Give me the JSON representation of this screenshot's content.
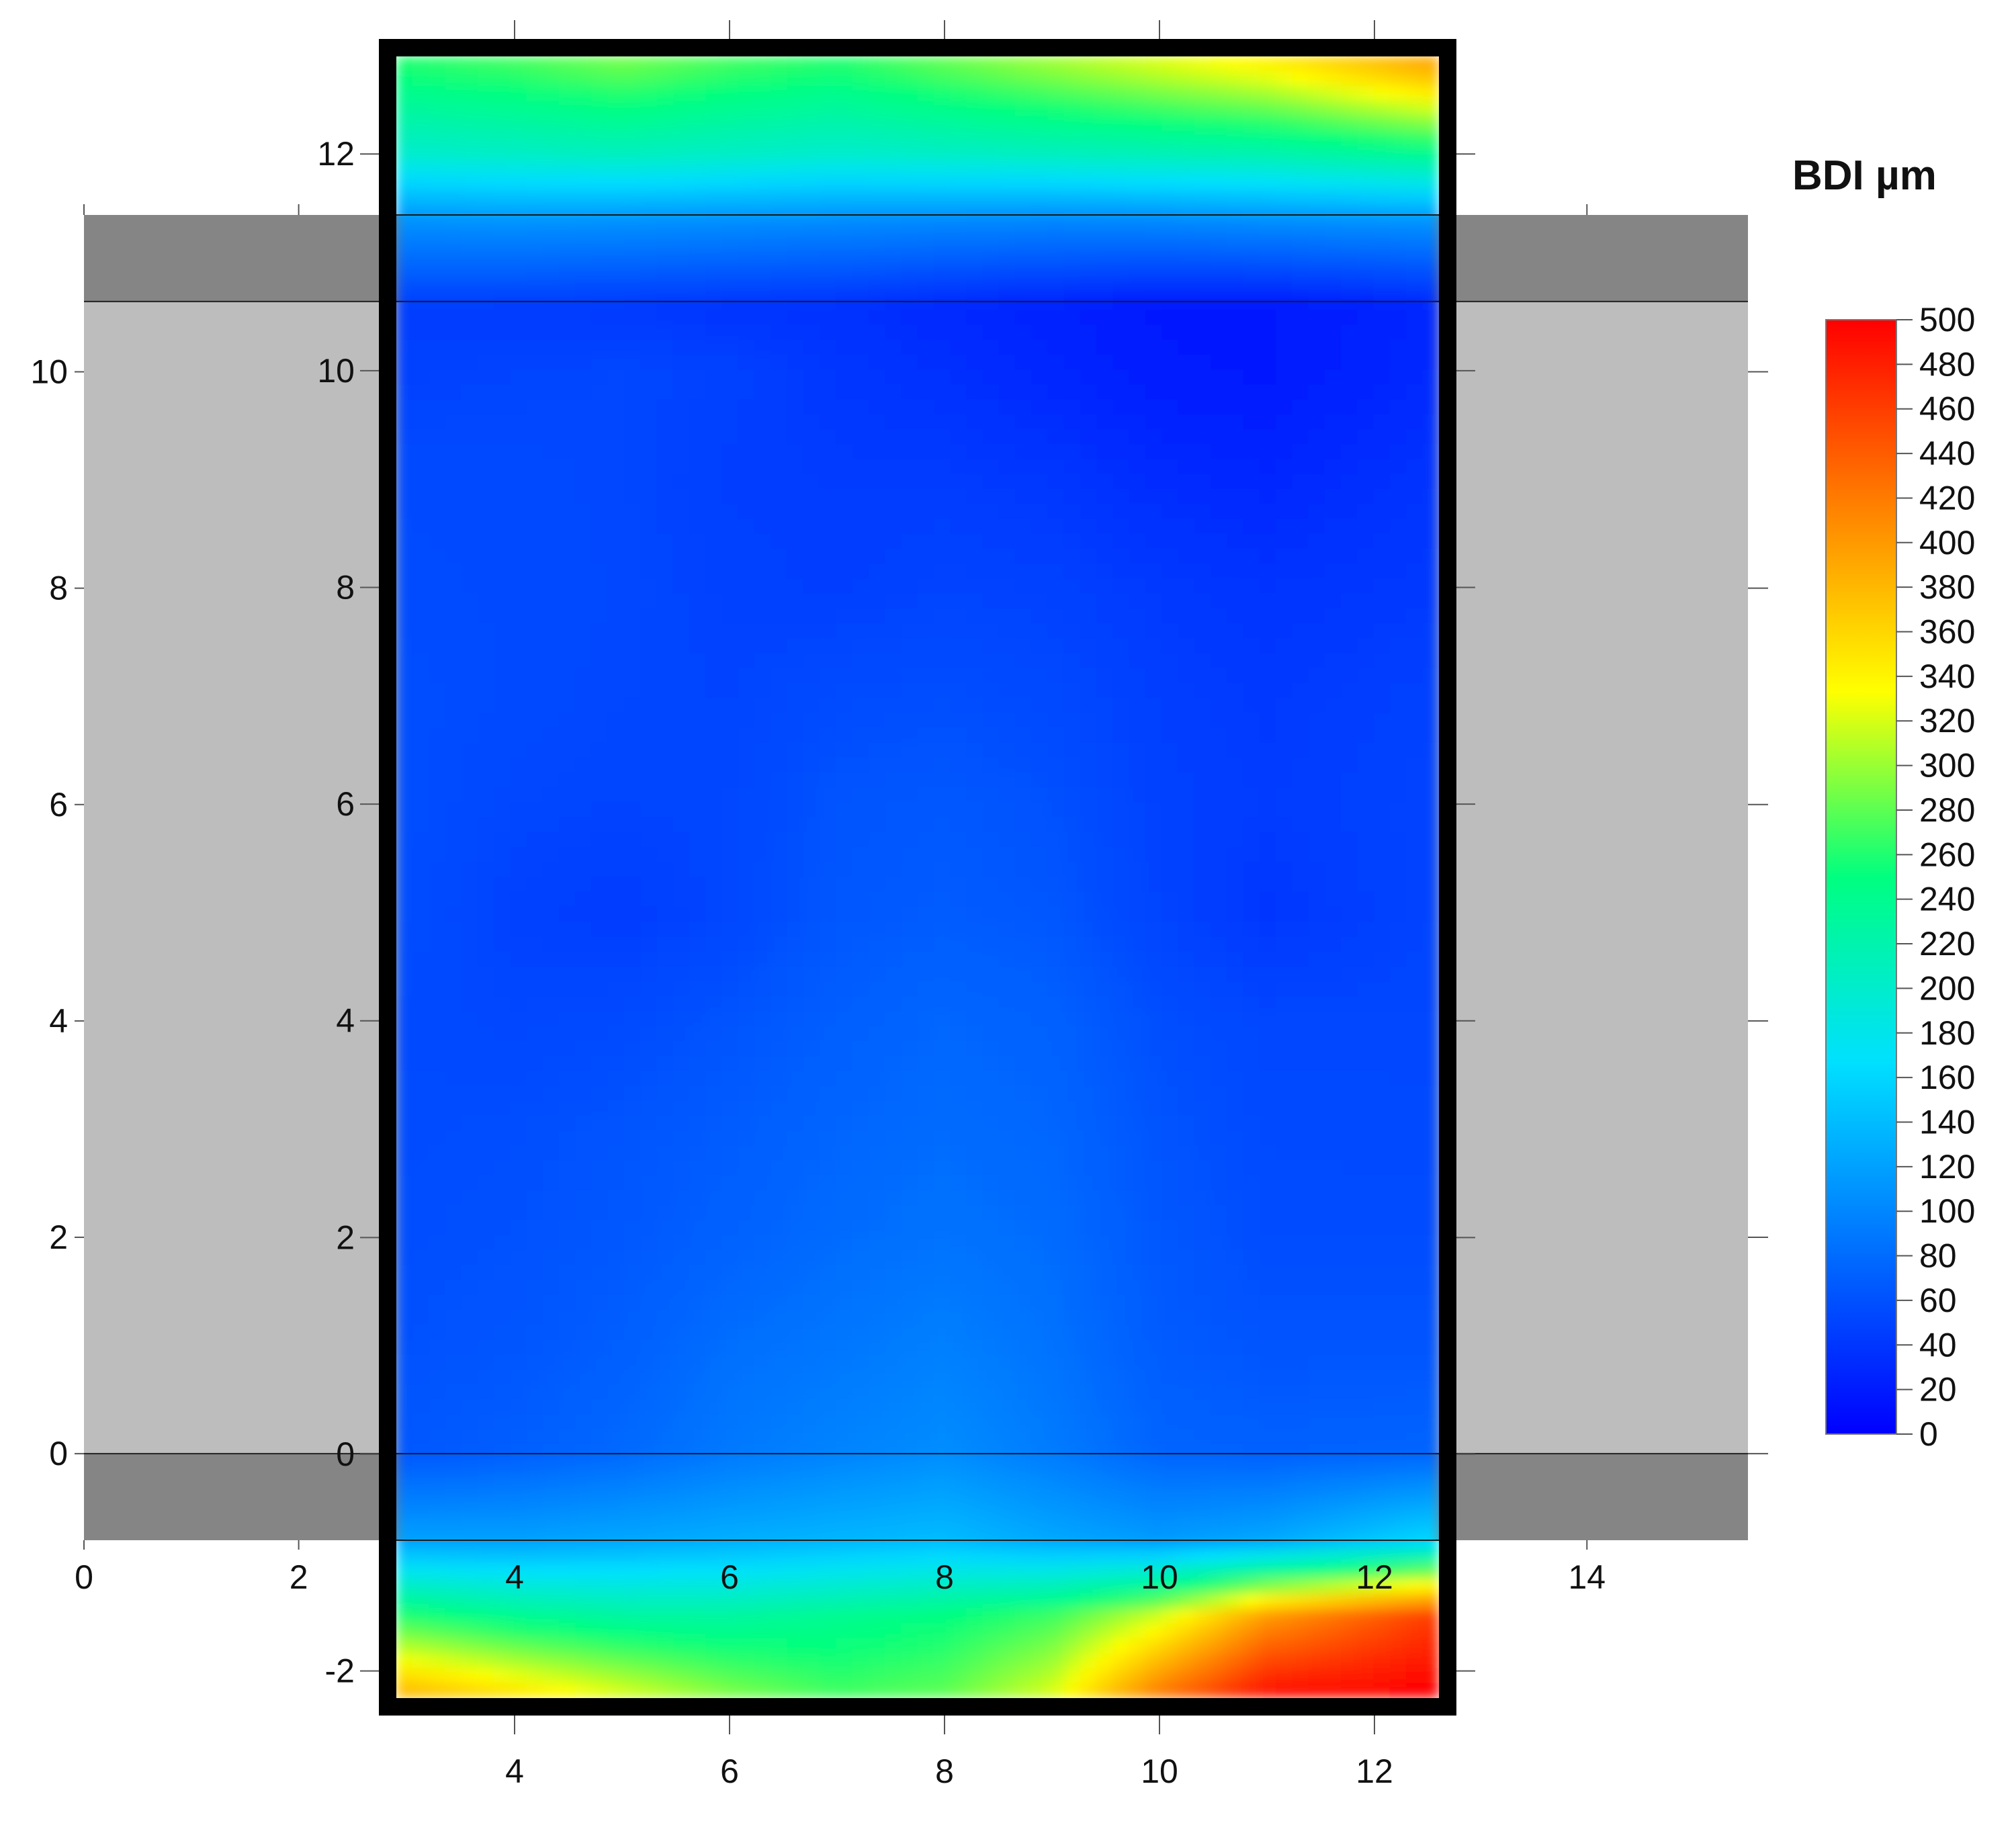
{
  "chart_data": {
    "type": "heatmap",
    "title": "",
    "colorbar": {
      "title": "BDI µm",
      "min": 0,
      "max": 500,
      "step": 20,
      "tick_labels": [
        "0",
        "20",
        "40",
        "60",
        "80",
        "100",
        "120",
        "140",
        "160",
        "180",
        "200",
        "220",
        "240",
        "260",
        "280",
        "300",
        "320",
        "340",
        "360",
        "380",
        "400",
        "420",
        "440",
        "460",
        "480",
        "500"
      ],
      "colors": [
        "#0000ff",
        "#0070ff",
        "#00e0ff",
        "#00ff80",
        "#ffff00",
        "#ff8000",
        "#ff0000"
      ]
    },
    "background_band": {
      "x_range": [
        0,
        15.5
      ],
      "y_range": [
        -0.8,
        11.45
      ],
      "light_band_y": [
        0,
        10.65
      ],
      "colors": {
        "light": "#bdbdbd",
        "dark": "#858585"
      },
      "x_ticks": [
        "0",
        "2",
        "4",
        "6",
        "8",
        "10",
        "12",
        "14"
      ],
      "y_ticks": [
        "0",
        "2",
        "4",
        "6",
        "8",
        "10"
      ],
      "x_tick_values": [
        0,
        2,
        4,
        6,
        8,
        10,
        12,
        14
      ],
      "y_tick_values": [
        0,
        2,
        4,
        6,
        8,
        10
      ]
    },
    "heatmap": {
      "x_range": [
        2.9,
        12.6
      ],
      "y_range": [
        -2.25,
        12.9
      ],
      "x_ticks": [
        "4",
        "6",
        "8",
        "10",
        "12"
      ],
      "y_ticks": [
        "-2",
        "0",
        "2",
        "4",
        "6",
        "8",
        "10",
        "12"
      ],
      "x_tick_values": [
        4,
        6,
        8,
        10,
        12
      ],
      "y_tick_values": [
        -2,
        0,
        2,
        4,
        6,
        8,
        10,
        12
      ],
      "x": [
        3,
        4,
        5,
        6,
        7,
        8,
        9,
        10,
        11,
        12.5
      ],
      "y": [
        -2.2,
        -1.5,
        -0.8,
        0,
        1,
        2,
        3,
        4,
        5,
        6,
        7,
        8,
        9,
        10,
        10.6,
        11.4,
        12,
        12.8
      ],
      "values": [
        [
          380,
          350,
          320,
          290,
          270,
          280,
          320,
          420,
          490,
          500
        ],
        [
          260,
          240,
          230,
          230,
          240,
          250,
          270,
          320,
          400,
          460
        ],
        [
          120,
          120,
          125,
          130,
          135,
          140,
          125,
          115,
          125,
          160
        ],
        [
          65,
          70,
          78,
          90,
          98,
          105,
          92,
          75,
          72,
          75
        ],
        [
          60,
          63,
          70,
          82,
          88,
          95,
          85,
          68,
          62,
          62
        ],
        [
          58,
          60,
          65,
          72,
          80,
          85,
          80,
          65,
          57,
          57
        ],
        [
          56,
          58,
          62,
          68,
          75,
          80,
          76,
          62,
          55,
          54
        ],
        [
          55,
          52,
          55,
          62,
          70,
          76,
          72,
          58,
          52,
          52
        ],
        [
          57,
          48,
          44,
          52,
          64,
          68,
          64,
          50,
          40,
          50
        ],
        [
          58,
          52,
          50,
          52,
          62,
          65,
          60,
          48,
          44,
          50
        ],
        [
          58,
          55,
          52,
          50,
          56,
          58,
          54,
          46,
          42,
          48
        ],
        [
          56,
          55,
          53,
          48,
          46,
          50,
          48,
          42,
          38,
          42
        ],
        [
          55,
          55,
          52,
          46,
          44,
          44,
          40,
          32,
          28,
          38
        ],
        [
          48,
          50,
          52,
          48,
          40,
          35,
          28,
          20,
          18,
          30
        ],
        [
          45,
          44,
          42,
          38,
          36,
          30,
          25,
          18,
          18,
          28
        ],
        [
          110,
          112,
          110,
          108,
          106,
          104,
          102,
          104,
          108,
          112
        ],
        [
          200,
          205,
          210,
          205,
          200,
          205,
          210,
          215,
          220,
          240
        ],
        [
          260,
          270,
          285,
          270,
          260,
          280,
          300,
          320,
          340,
          390
        ]
      ]
    },
    "xlabel": "",
    "ylabel": "",
    "grid": false
  }
}
